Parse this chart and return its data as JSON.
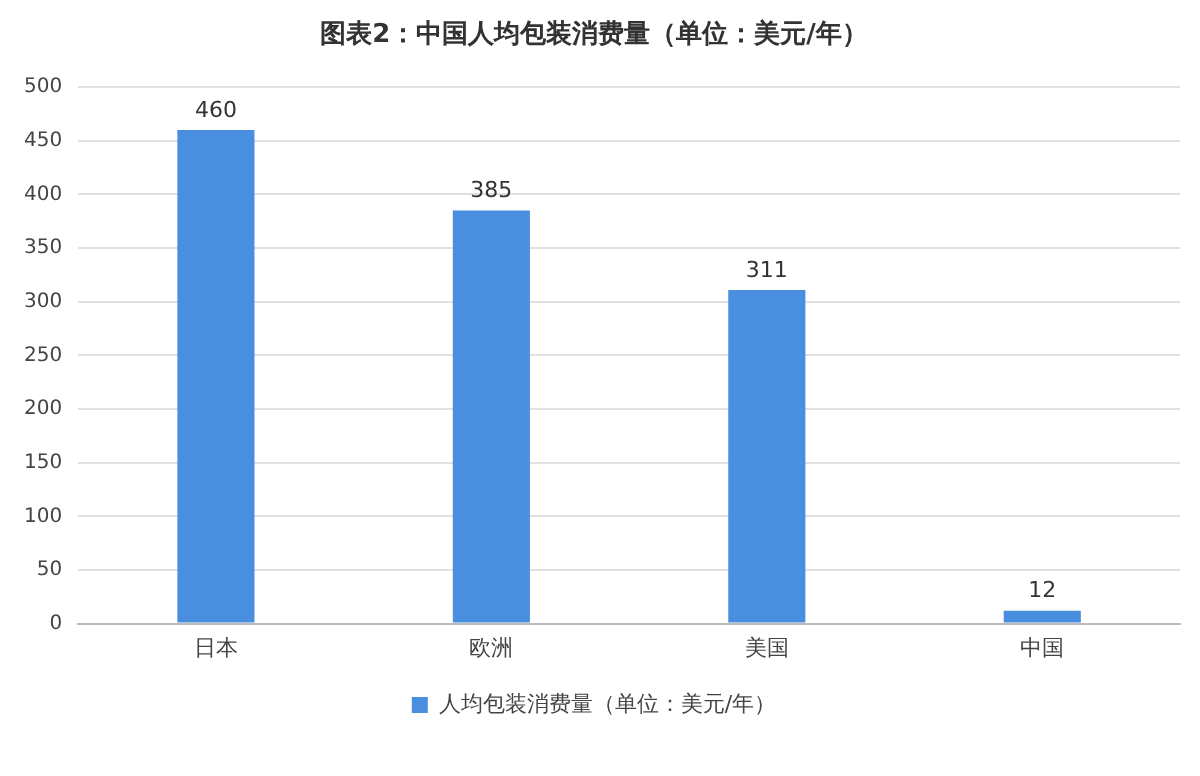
{
  "chart_data": {
    "type": "bar",
    "title": "图表2：中国人均包装消费量（单位：美元/年）",
    "categories": [
      "日本",
      "欧洲",
      "美国",
      "中国"
    ],
    "series": [
      {
        "name": "人均包装消费量（单位：美元/年）",
        "color": "#4a8ee0",
        "values": [
          460,
          385,
          311,
          12
        ]
      }
    ],
    "ylim": [
      0,
      500
    ],
    "yticks": [
      0,
      50,
      100,
      150,
      200,
      250,
      300,
      350,
      400,
      450,
      500
    ],
    "grid": "y",
    "legend": "bottom",
    "data_labels": true
  }
}
